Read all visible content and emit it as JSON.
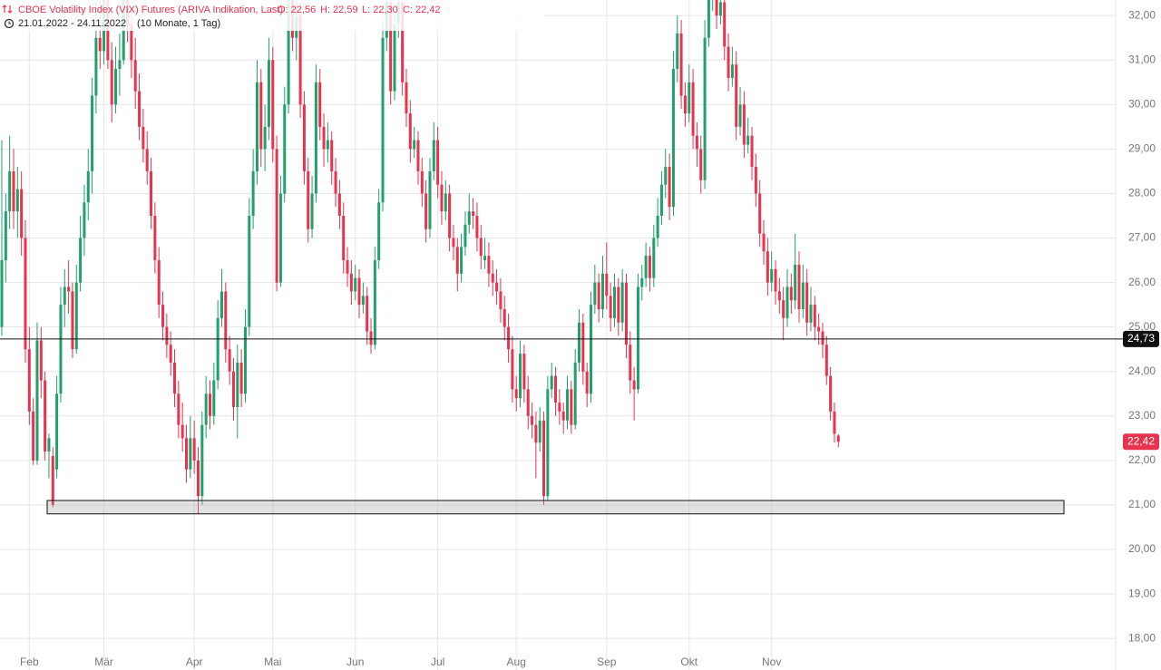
{
  "chart_data": {
    "type": "candlestick",
    "title": "CBOE Volatility Index (VIX) Futures (ARIVA Indikation, Last)",
    "ohlc_labels": [
      "O: 22,56",
      "H: 22,59",
      "L: 22,30",
      "C: 22,42"
    ],
    "subtitle": "21.01.2022 - 24.11.2022",
    "period": "(10 Monate, 1 Tag)",
    "up_color": "#22a06b",
    "down_color": "#e8334f",
    "grid": true,
    "ylim": [
      17.29,
      32.35
    ],
    "yticks": [
      {
        "value": 18,
        "label": "18,00"
      },
      {
        "value": 19,
        "label": "19,00"
      },
      {
        "value": 20,
        "label": "20,00"
      },
      {
        "value": 21,
        "label": "21,00"
      },
      {
        "value": 22,
        "label": "22,00"
      },
      {
        "value": 23,
        "label": "23,00"
      },
      {
        "value": 24,
        "label": "24,00"
      },
      {
        "value": 25,
        "label": "25,00"
      },
      {
        "value": 26,
        "label": "26,00"
      },
      {
        "value": 27,
        "label": "27,00"
      },
      {
        "value": 28,
        "label": "28,00"
      },
      {
        "value": 29,
        "label": "29,00"
      },
      {
        "value": 30,
        "label": "30,00"
      },
      {
        "value": 31,
        "label": "31,00"
      },
      {
        "value": 32,
        "label": "32,00"
      }
    ],
    "xticks": [
      {
        "value": 7,
        "label": "Feb"
      },
      {
        "value": 26,
        "label": "Mär"
      },
      {
        "value": 49,
        "label": "Apr"
      },
      {
        "value": 69,
        "label": "Mai"
      },
      {
        "value": 90,
        "label": "Jun"
      },
      {
        "value": 111,
        "label": "Jul"
      },
      {
        "value": 131,
        "label": "Aug"
      },
      {
        "value": 154,
        "label": "Sep"
      },
      {
        "value": 175,
        "label": "Okt"
      },
      {
        "value": 196,
        "label": "Nov"
      }
    ],
    "level_line": {
      "value": 24.73,
      "label": "24,73"
    },
    "last_price": {
      "value": 22.42,
      "label": "22,42"
    },
    "support_zone": {
      "low": 20.8,
      "high": 21.1
    },
    "ohlc": [
      [
        25.0,
        29.2,
        24.8,
        26.5
      ],
      [
        26.5,
        28.0,
        26.0,
        27.6
      ],
      [
        27.6,
        29.3,
        27.2,
        28.5
      ],
      [
        28.5,
        29.0,
        27.2,
        27.6
      ],
      [
        27.6,
        28.6,
        27.0,
        28.1
      ],
      [
        28.1,
        28.5,
        26.6,
        27.0
      ],
      [
        27.0,
        27.4,
        24.2,
        24.5
      ],
      [
        24.5,
        25.0,
        22.8,
        23.1
      ],
      [
        23.1,
        23.4,
        21.9,
        22.0
      ],
      [
        22.0,
        25.1,
        21.9,
        24.7
      ],
      [
        24.7,
        25.0,
        23.4,
        23.8
      ],
      [
        23.8,
        24.0,
        22.0,
        22.2
      ],
      [
        22.2,
        22.6,
        21.6,
        22.5
      ],
      [
        22.1,
        22.3,
        20.95,
        21.0
      ],
      [
        21.8,
        23.9,
        21.6,
        23.5
      ],
      [
        23.5,
        25.9,
        23.3,
        25.5
      ],
      [
        25.5,
        26.3,
        25.0,
        25.9
      ],
      [
        25.9,
        26.5,
        25.3,
        25.8
      ],
      [
        25.8,
        26.0,
        24.3,
        24.5
      ],
      [
        24.5,
        26.4,
        24.4,
        26.0
      ],
      [
        26.0,
        27.5,
        25.8,
        27.0
      ],
      [
        27.0,
        28.2,
        26.6,
        27.8
      ],
      [
        27.8,
        29.0,
        27.4,
        28.5
      ],
      [
        28.5,
        30.6,
        28.0,
        30.2
      ],
      [
        30.2,
        32.3,
        29.8,
        31.5
      ],
      [
        31.5,
        32.5,
        30.8,
        31.2
      ],
      [
        31.2,
        33.0,
        30.9,
        32.5
      ],
      [
        32.5,
        32.9,
        30.8,
        31.0
      ],
      [
        31.0,
        31.4,
        29.6,
        30.0
      ],
      [
        30.0,
        31.3,
        29.8,
        30.8
      ],
      [
        30.8,
        31.6,
        30.2,
        31.0
      ],
      [
        31.0,
        33.2,
        30.9,
        32.8
      ],
      [
        32.8,
        33.0,
        31.4,
        31.8
      ],
      [
        31.8,
        32.2,
        30.6,
        31.0
      ],
      [
        31.0,
        31.5,
        29.9,
        30.3
      ],
      [
        30.3,
        30.7,
        29.2,
        29.5
      ],
      [
        29.5,
        29.9,
        28.7,
        29.0
      ],
      [
        29.0,
        29.4,
        28.2,
        28.5
      ],
      [
        28.5,
        28.8,
        27.2,
        27.5
      ],
      [
        27.5,
        27.8,
        26.2,
        26.5
      ],
      [
        26.5,
        26.8,
        25.2,
        25.5
      ],
      [
        25.5,
        25.8,
        24.7,
        25.0
      ],
      [
        25.0,
        25.3,
        24.3,
        24.6
      ],
      [
        24.6,
        24.9,
        23.9,
        24.2
      ],
      [
        24.2,
        24.5,
        23.2,
        23.5
      ],
      [
        23.5,
        23.8,
        22.5,
        22.8
      ],
      [
        22.8,
        23.3,
        22.2,
        22.5
      ],
      [
        22.5,
        22.8,
        21.5,
        21.8
      ],
      [
        21.8,
        23.0,
        21.6,
        22.5
      ],
      [
        22.5,
        22.9,
        21.7,
        22.0
      ],
      [
        22.0,
        22.3,
        20.8,
        21.2
      ],
      [
        21.2,
        23.1,
        21.0,
        22.8
      ],
      [
        22.8,
        23.9,
        22.5,
        23.5
      ],
      [
        23.5,
        23.8,
        22.7,
        23.0
      ],
      [
        23.0,
        24.2,
        22.8,
        23.8
      ],
      [
        23.8,
        25.6,
        23.6,
        25.2
      ],
      [
        25.2,
        26.3,
        25.0,
        25.8
      ],
      [
        25.8,
        26.0,
        24.2,
        24.5
      ],
      [
        24.5,
        24.8,
        23.7,
        24.0
      ],
      [
        24.0,
        24.3,
        22.9,
        23.2
      ],
      [
        23.2,
        24.6,
        22.5,
        24.2
      ],
      [
        24.2,
        24.5,
        23.2,
        23.5
      ],
      [
        23.5,
        25.4,
        23.3,
        25.0
      ],
      [
        25.0,
        27.9,
        24.8,
        27.5
      ],
      [
        27.5,
        29.0,
        27.2,
        28.5
      ],
      [
        28.5,
        31.0,
        28.2,
        30.5
      ],
      [
        30.5,
        30.8,
        28.6,
        29.0
      ],
      [
        29.0,
        30.0,
        28.5,
        29.5
      ],
      [
        29.5,
        31.5,
        29.2,
        31.0
      ],
      [
        31.0,
        31.3,
        28.7,
        29.0
      ],
      [
        29.0,
        29.3,
        25.8,
        26.0
      ],
      [
        26.0,
        28.4,
        25.9,
        28.0
      ],
      [
        28.0,
        30.4,
        27.8,
        30.0
      ],
      [
        30.0,
        33.0,
        29.8,
        32.5
      ],
      [
        32.5,
        32.8,
        31.2,
        31.5
      ],
      [
        31.5,
        32.4,
        31.0,
        32.0
      ],
      [
        32.0,
        32.3,
        29.7,
        30.0
      ],
      [
        30.0,
        30.3,
        28.2,
        28.5
      ],
      [
        28.5,
        28.8,
        26.9,
        27.2
      ],
      [
        27.2,
        28.4,
        27.0,
        28.0
      ],
      [
        28.0,
        30.9,
        27.8,
        30.5
      ],
      [
        30.5,
        30.8,
        29.2,
        29.5
      ],
      [
        29.5,
        29.8,
        28.6,
        29.0
      ],
      [
        29.0,
        29.6,
        28.7,
        29.2
      ],
      [
        29.2,
        29.4,
        28.2,
        28.5
      ],
      [
        28.5,
        28.8,
        27.7,
        28.0
      ],
      [
        28.0,
        28.3,
        27.2,
        27.5
      ],
      [
        27.5,
        27.8,
        26.2,
        26.5
      ],
      [
        26.5,
        26.8,
        25.9,
        26.2
      ],
      [
        26.2,
        26.5,
        25.5,
        25.8
      ],
      [
        25.8,
        26.4,
        25.6,
        26.1
      ],
      [
        26.1,
        26.3,
        25.2,
        25.5
      ],
      [
        25.5,
        26.0,
        25.3,
        25.7
      ],
      [
        25.7,
        25.9,
        24.6,
        24.9
      ],
      [
        24.9,
        25.2,
        24.4,
        24.6
      ],
      [
        24.6,
        26.8,
        24.5,
        26.5
      ],
      [
        26.5,
        28.1,
        26.3,
        27.8
      ],
      [
        27.8,
        31.9,
        27.6,
        31.5
      ],
      [
        31.5,
        32.7,
        31.2,
        32.3
      ],
      [
        32.3,
        32.5,
        30.0,
        30.3
      ],
      [
        30.3,
        32.1,
        30.1,
        31.8
      ],
      [
        31.8,
        32.6,
        31.5,
        32.3
      ],
      [
        32.3,
        32.5,
        30.2,
        30.5
      ],
      [
        30.5,
        30.8,
        29.5,
        29.8
      ],
      [
        29.8,
        30.1,
        28.7,
        29.0
      ],
      [
        29.0,
        29.5,
        28.8,
        29.2
      ],
      [
        29.2,
        29.4,
        28.2,
        28.5
      ],
      [
        28.5,
        28.8,
        27.7,
        28.0
      ],
      [
        28.0,
        28.3,
        26.9,
        27.2
      ],
      [
        27.2,
        28.8,
        27.0,
        28.5
      ],
      [
        28.5,
        29.6,
        28.3,
        29.2
      ],
      [
        29.2,
        29.5,
        27.9,
        28.2
      ],
      [
        28.2,
        28.5,
        27.3,
        27.6
      ],
      [
        27.6,
        28.3,
        27.4,
        28.0
      ],
      [
        28.0,
        28.2,
        26.7,
        27.0
      ],
      [
        27.0,
        27.3,
        26.5,
        26.8
      ],
      [
        26.8,
        27.0,
        25.8,
        26.2
      ],
      [
        26.2,
        27.1,
        26.0,
        26.8
      ],
      [
        26.8,
        27.6,
        26.6,
        27.3
      ],
      [
        27.3,
        28.0,
        27.1,
        27.6
      ],
      [
        27.6,
        27.9,
        27.2,
        27.5
      ],
      [
        27.5,
        27.8,
        26.7,
        27.0
      ],
      [
        27.0,
        27.3,
        26.3,
        26.6
      ],
      [
        26.5,
        27.0,
        26.3,
        26.6
      ],
      [
        26.6,
        26.9,
        25.9,
        26.2
      ],
      [
        26.2,
        26.5,
        25.7,
        26.0
      ],
      [
        26.0,
        26.3,
        25.5,
        25.8
      ],
      [
        25.8,
        26.1,
        25.1,
        25.4
      ],
      [
        25.4,
        25.7,
        24.7,
        25.0
      ],
      [
        25.0,
        25.3,
        24.2,
        24.5
      ],
      [
        24.5,
        24.8,
        23.3,
        23.6
      ],
      [
        23.6,
        23.9,
        23.1,
        23.4
      ],
      [
        23.4,
        24.7,
        23.2,
        24.4
      ],
      [
        24.4,
        24.6,
        23.3,
        23.6
      ],
      [
        23.6,
        23.9,
        22.7,
        23.0
      ],
      [
        23.0,
        23.3,
        22.5,
        22.8
      ],
      [
        22.8,
        23.1,
        21.6,
        22.4
      ],
      [
        22.4,
        23.2,
        22.2,
        22.9
      ],
      [
        22.9,
        23.1,
        21.0,
        21.2
      ],
      [
        21.2,
        23.9,
        21.1,
        23.6
      ],
      [
        23.6,
        24.2,
        23.4,
        23.9
      ],
      [
        23.9,
        24.1,
        23.0,
        23.3
      ],
      [
        23.3,
        23.6,
        22.8,
        23.1
      ],
      [
        23.1,
        23.3,
        22.6,
        22.9
      ],
      [
        22.9,
        23.9,
        22.7,
        23.6
      ],
      [
        23.6,
        23.8,
        22.6,
        22.8
      ],
      [
        22.8,
        24.5,
        22.7,
        24.2
      ],
      [
        24.2,
        25.4,
        24.0,
        25.1
      ],
      [
        25.1,
        25.3,
        23.7,
        24.0
      ],
      [
        24.0,
        24.2,
        23.2,
        23.5
      ],
      [
        23.5,
        25.8,
        23.3,
        25.5
      ],
      [
        25.5,
        26.4,
        25.3,
        26.0
      ],
      [
        26.0,
        26.2,
        25.1,
        25.4
      ],
      [
        25.4,
        26.6,
        25.2,
        26.2
      ],
      [
        26.2,
        26.9,
        25.4,
        25.7
      ],
      [
        25.7,
        26.0,
        24.9,
        25.2
      ],
      [
        25.2,
        26.2,
        25.0,
        25.9
      ],
      [
        25.9,
        26.1,
        24.8,
        25.1
      ],
      [
        25.1,
        26.3,
        24.9,
        26.0
      ],
      [
        26.0,
        26.2,
        24.3,
        24.6
      ],
      [
        24.6,
        24.9,
        23.5,
        23.8
      ],
      [
        23.8,
        24.1,
        22.9,
        23.6
      ],
      [
        23.6,
        26.2,
        23.5,
        25.9
      ],
      [
        25.9,
        26.4,
        25.6,
        26.1
      ],
      [
        26.1,
        26.9,
        25.9,
        26.6
      ],
      [
        26.6,
        26.8,
        25.8,
        26.1
      ],
      [
        26.1,
        27.3,
        25.9,
        27.0
      ],
      [
        27.0,
        27.9,
        26.8,
        27.5
      ],
      [
        27.5,
        28.5,
        27.3,
        28.2
      ],
      [
        28.2,
        29.0,
        27.9,
        28.6
      ],
      [
        28.6,
        28.9,
        27.4,
        27.7
      ],
      [
        27.7,
        31.2,
        27.5,
        30.8
      ],
      [
        30.8,
        32.0,
        30.5,
        31.6
      ],
      [
        31.6,
        31.9,
        29.9,
        30.2
      ],
      [
        30.2,
        30.5,
        29.5,
        29.8
      ],
      [
        29.8,
        30.9,
        29.6,
        30.5
      ],
      [
        30.5,
        30.8,
        29.0,
        29.3
      ],
      [
        29.3,
        29.6,
        28.6,
        29.0
      ],
      [
        29.0,
        29.3,
        28.0,
        28.3
      ],
      [
        28.3,
        31.9,
        28.1,
        31.5
      ],
      [
        31.5,
        32.8,
        31.3,
        32.4
      ],
      [
        32.4,
        33.2,
        32.1,
        32.8
      ],
      [
        32.8,
        33.0,
        31.7,
        32.0
      ],
      [
        32.0,
        32.7,
        31.8,
        32.3
      ],
      [
        32.3,
        32.6,
        31.0,
        31.3
      ],
      [
        31.3,
        31.6,
        30.3,
        30.6
      ],
      [
        30.6,
        31.3,
        30.4,
        30.9
      ],
      [
        30.9,
        31.2,
        29.2,
        29.5
      ],
      [
        29.5,
        30.4,
        29.3,
        30.0
      ],
      [
        30.0,
        30.3,
        28.8,
        29.1
      ],
      [
        29.1,
        29.7,
        28.9,
        29.3
      ],
      [
        29.3,
        29.5,
        28.3,
        28.6
      ],
      [
        28.6,
        28.9,
        27.7,
        28.0
      ],
      [
        28.0,
        28.3,
        26.8,
        27.1
      ],
      [
        27.1,
        27.4,
        26.4,
        26.7
      ],
      [
        26.7,
        27.0,
        25.7,
        26.0
      ],
      [
        26.0,
        26.7,
        25.8,
        26.3
      ],
      [
        26.3,
        26.5,
        25.5,
        25.8
      ],
      [
        25.8,
        26.1,
        25.3,
        25.6
      ],
      [
        25.6,
        25.9,
        24.7,
        25.2
      ],
      [
        25.2,
        26.3,
        25.0,
        25.9
      ],
      [
        25.9,
        26.2,
        25.3,
        25.6
      ],
      [
        25.6,
        27.1,
        25.4,
        26.4
      ],
      [
        26.4,
        26.7,
        25.1,
        25.4
      ],
      [
        25.4,
        26.4,
        25.2,
        26.0
      ],
      [
        26.0,
        26.3,
        24.8,
        25.1
      ],
      [
        25.1,
        25.9,
        24.9,
        25.5
      ],
      [
        25.5,
        25.7,
        24.7,
        25.0
      ],
      [
        25.0,
        25.3,
        24.6,
        24.9
      ],
      [
        24.9,
        25.1,
        24.3,
        24.6
      ],
      [
        24.6,
        24.8,
        23.7,
        23.9
      ],
      [
        23.9,
        24.1,
        22.9,
        23.1
      ],
      [
        23.1,
        23.3,
        22.4,
        22.6
      ],
      [
        22.56,
        22.59,
        22.3,
        22.42
      ]
    ]
  }
}
